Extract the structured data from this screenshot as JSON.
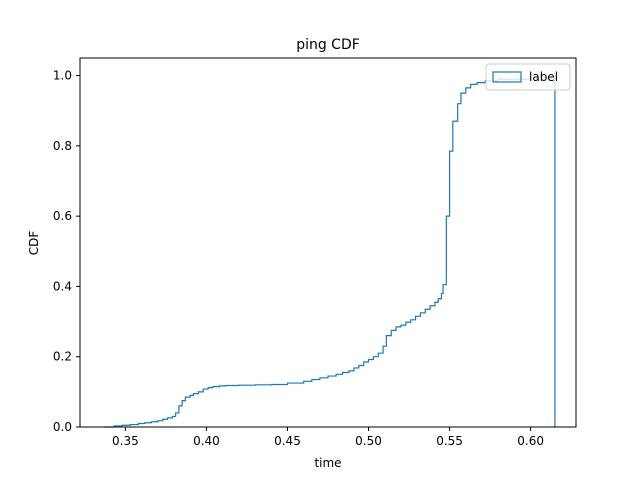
{
  "chart_data": {
    "type": "line",
    "title": "ping CDF",
    "xlabel": "time",
    "ylabel": "CDF",
    "xlim": [
      0.322,
      0.628
    ],
    "ylim": [
      0,
      1.05
    ],
    "xticks": [
      0.35,
      0.4,
      0.45,
      0.5,
      0.55,
      0.6
    ],
    "xtick_labels": [
      "0.35",
      "0.40",
      "0.45",
      "0.50",
      "0.55",
      "0.60"
    ],
    "yticks": [
      0.0,
      0.2,
      0.4,
      0.6,
      0.8,
      1.0
    ],
    "ytick_labels": [
      "0.0",
      "0.2",
      "0.4",
      "0.6",
      "0.8",
      "1.0"
    ],
    "legend": {
      "position": "top-right",
      "entries": [
        "label"
      ]
    },
    "grid": false,
    "color": "#1f77b4",
    "series": [
      {
        "name": "label",
        "style": "step-histogram-cdf",
        "points": [
          [
            0.337,
            0.0
          ],
          [
            0.343,
            0.003
          ],
          [
            0.348,
            0.005
          ],
          [
            0.353,
            0.007
          ],
          [
            0.358,
            0.01
          ],
          [
            0.362,
            0.012
          ],
          [
            0.366,
            0.015
          ],
          [
            0.37,
            0.018
          ],
          [
            0.373,
            0.022
          ],
          [
            0.376,
            0.026
          ],
          [
            0.379,
            0.03
          ],
          [
            0.381,
            0.04
          ],
          [
            0.383,
            0.06
          ],
          [
            0.385,
            0.075
          ],
          [
            0.387,
            0.085
          ],
          [
            0.39,
            0.09
          ],
          [
            0.392,
            0.095
          ],
          [
            0.395,
            0.1
          ],
          [
            0.398,
            0.108
          ],
          [
            0.401,
            0.112
          ],
          [
            0.404,
            0.115
          ],
          [
            0.408,
            0.117
          ],
          [
            0.412,
            0.118
          ],
          [
            0.42,
            0.119
          ],
          [
            0.43,
            0.12
          ],
          [
            0.44,
            0.121
          ],
          [
            0.45,
            0.125
          ],
          [
            0.46,
            0.13
          ],
          [
            0.465,
            0.135
          ],
          [
            0.47,
            0.14
          ],
          [
            0.475,
            0.145
          ],
          [
            0.48,
            0.15
          ],
          [
            0.484,
            0.155
          ],
          [
            0.488,
            0.16
          ],
          [
            0.491,
            0.168
          ],
          [
            0.494,
            0.175
          ],
          [
            0.497,
            0.185
          ],
          [
            0.5,
            0.192
          ],
          [
            0.503,
            0.2
          ],
          [
            0.506,
            0.21
          ],
          [
            0.509,
            0.23
          ],
          [
            0.511,
            0.26
          ],
          [
            0.514,
            0.275
          ],
          [
            0.517,
            0.285
          ],
          [
            0.52,
            0.29
          ],
          [
            0.523,
            0.298
          ],
          [
            0.526,
            0.305
          ],
          [
            0.529,
            0.315
          ],
          [
            0.532,
            0.325
          ],
          [
            0.535,
            0.335
          ],
          [
            0.538,
            0.345
          ],
          [
            0.541,
            0.355
          ],
          [
            0.543,
            0.365
          ],
          [
            0.545,
            0.38
          ],
          [
            0.546,
            0.405
          ],
          [
            0.548,
            0.6
          ],
          [
            0.55,
            0.785
          ],
          [
            0.552,
            0.87
          ],
          [
            0.555,
            0.92
          ],
          [
            0.557,
            0.95
          ],
          [
            0.56,
            0.965
          ],
          [
            0.563,
            0.975
          ],
          [
            0.567,
            0.98
          ],
          [
            0.572,
            0.985
          ],
          [
            0.58,
            0.99
          ],
          [
            0.6,
            0.995
          ],
          [
            0.612,
            0.998
          ],
          [
            0.615,
            1.0
          ],
          [
            0.615,
            0.0
          ]
        ]
      }
    ]
  }
}
